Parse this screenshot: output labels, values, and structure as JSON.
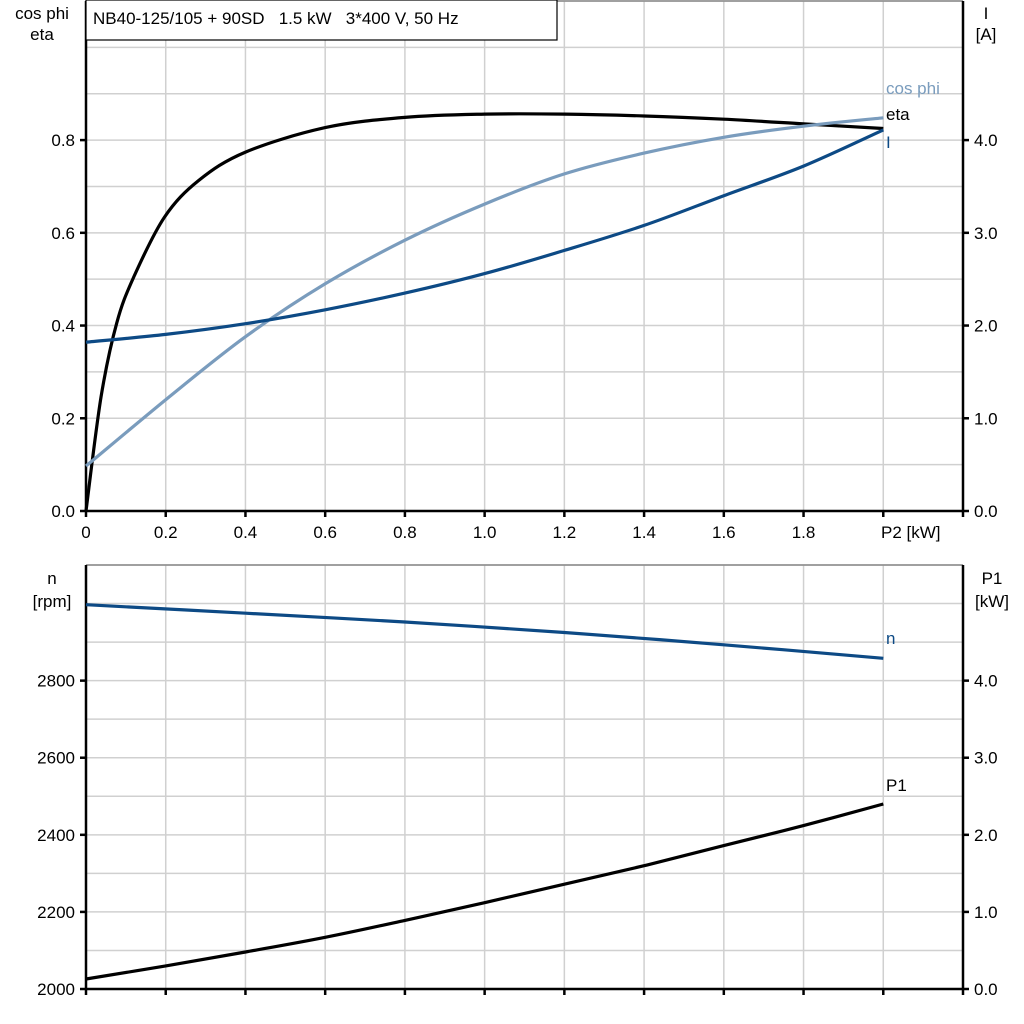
{
  "chart_data": [
    {
      "type": "line",
      "title": "NB40-125/105 + 90SD   1.5 kW   3*400 V, 50 Hz",
      "xlabel": "P2 [kW]",
      "ylabel": [
        "cos phi",
        "eta"
      ],
      "y2label": [
        "I",
        "[A]"
      ],
      "xlim": [
        0,
        2.2
      ],
      "ylim": [
        0,
        1.1
      ],
      "y2lim": [
        0,
        5.5
      ],
      "grid": true,
      "xticks": [
        0,
        0.2,
        0.4,
        0.6,
        0.8,
        1.0,
        1.2,
        1.4,
        1.6,
        1.8
      ],
      "xtick_labels": [
        "0",
        "0.2",
        "0.4",
        "0.6",
        "0.8",
        "1.0",
        "1.2",
        "1.4",
        "1.6",
        "1.8"
      ],
      "yticks": [
        0,
        0.2,
        0.4,
        0.6,
        0.8
      ],
      "ytick_labels": [
        "0.0",
        "0.2",
        "0.4",
        "0.6",
        "0.8"
      ],
      "y2ticks": [
        0,
        1,
        2,
        3,
        4
      ],
      "y2tick_labels": [
        "0.0",
        "1.0",
        "2.0",
        "3.0",
        "4.0"
      ],
      "series": [
        {
          "name": "eta",
          "axis": "left",
          "color": "#000000",
          "x": [
            0,
            0.038,
            0.077,
            0.12,
            0.197,
            0.283,
            0.4,
            0.6,
            0.8,
            1.0,
            1.2,
            1.4,
            1.6,
            1.8,
            2.0
          ],
          "y": [
            0,
            0.247,
            0.405,
            0.505,
            0.634,
            0.713,
            0.774,
            0.827,
            0.849,
            0.856,
            0.856,
            0.852,
            0.845,
            0.835,
            0.825
          ]
        },
        {
          "name": "cos phi",
          "axis": "left",
          "color": "#7a9cbd",
          "x": [
            0,
            0.2,
            0.4,
            0.6,
            0.8,
            1.0,
            1.2,
            1.4,
            1.6,
            1.8,
            2.0
          ],
          "y": [
            0.097,
            0.24,
            0.376,
            0.49,
            0.584,
            0.662,
            0.727,
            0.772,
            0.806,
            0.83,
            0.848
          ]
        },
        {
          "name": "I",
          "axis": "right",
          "color": "#0d4a85",
          "x": [
            0,
            0.2,
            0.4,
            0.6,
            0.8,
            1.0,
            1.2,
            1.4,
            1.6,
            1.8,
            2.0
          ],
          "y": [
            1.82,
            1.905,
            2.02,
            2.17,
            2.35,
            2.56,
            2.81,
            3.08,
            3.4,
            3.72,
            4.11
          ]
        }
      ]
    },
    {
      "type": "line",
      "xlabel": "",
      "ylabel": [
        "n",
        "[rpm]"
      ],
      "y2label": [
        "P1",
        "[kW]"
      ],
      "xlim": [
        0,
        2.2
      ],
      "ylim": [
        2000,
        3100
      ],
      "y2lim": [
        0,
        5.5
      ],
      "grid": true,
      "xticks": [
        0,
        0.2,
        0.4,
        0.6,
        0.8,
        1.0,
        1.2,
        1.4,
        1.6,
        1.8,
        2.0
      ],
      "yticks": [
        2000,
        2200,
        2400,
        2600,
        2800
      ],
      "ytick_labels": [
        "2000",
        "2200",
        "2400",
        "2600",
        "2800"
      ],
      "y2ticks": [
        0,
        1,
        2,
        3,
        4
      ],
      "y2tick_labels": [
        "0.0",
        "1.0",
        "2.0",
        "3.0",
        "4.0"
      ],
      "series": [
        {
          "name": "n",
          "axis": "left",
          "color": "#0d4a85",
          "x": [
            0,
            0.4,
            0.8,
            1.2,
            1.6,
            2.0
          ],
          "y": [
            2997,
            2975,
            2952,
            2925,
            2893,
            2858
          ]
        },
        {
          "name": "P1",
          "axis": "right",
          "color": "#000000",
          "x": [
            0,
            0.2,
            0.4,
            0.6,
            0.8,
            1.0,
            1.2,
            1.4,
            1.6,
            1.8,
            2.0
          ],
          "y": [
            0.13,
            0.3,
            0.48,
            0.67,
            0.89,
            1.12,
            1.36,
            1.6,
            1.86,
            2.12,
            2.4
          ]
        }
      ]
    }
  ]
}
